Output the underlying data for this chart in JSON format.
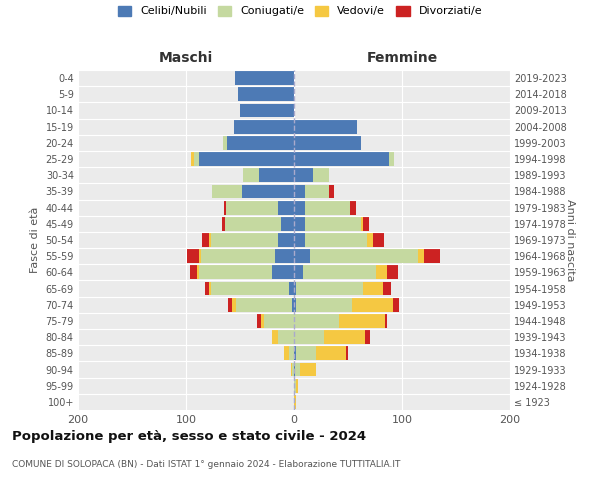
{
  "age_groups": [
    "100+",
    "95-99",
    "90-94",
    "85-89",
    "80-84",
    "75-79",
    "70-74",
    "65-69",
    "60-64",
    "55-59",
    "50-54",
    "45-49",
    "40-44",
    "35-39",
    "30-34",
    "25-29",
    "20-24",
    "15-19",
    "10-14",
    "5-9",
    "0-4"
  ],
  "birth_years": [
    "≤ 1923",
    "1924-1928",
    "1929-1933",
    "1934-1938",
    "1939-1943",
    "1944-1948",
    "1949-1953",
    "1954-1958",
    "1959-1963",
    "1964-1968",
    "1969-1973",
    "1974-1978",
    "1979-1983",
    "1984-1988",
    "1989-1993",
    "1994-1998",
    "1999-2003",
    "2004-2008",
    "2009-2013",
    "2014-2018",
    "2019-2023"
  ],
  "colors": {
    "celibi": "#4d7ab5",
    "coniugati": "#c5d9a0",
    "vedovi": "#f5c842",
    "divorziati": "#cc2222"
  },
  "maschi": {
    "celibi": [
      0,
      0,
      0,
      0,
      0,
      0,
      2,
      5,
      20,
      18,
      15,
      12,
      15,
      48,
      32,
      88,
      62,
      56,
      50,
      52,
      55
    ],
    "coniugati": [
      0,
      0,
      2,
      5,
      15,
      28,
      52,
      72,
      68,
      68,
      62,
      52,
      48,
      28,
      15,
      5,
      4,
      0,
      0,
      0,
      0
    ],
    "vedovi": [
      0,
      0,
      1,
      4,
      5,
      3,
      3,
      2,
      2,
      2,
      2,
      0,
      0,
      0,
      0,
      2,
      0,
      0,
      0,
      0,
      0
    ],
    "divorziati": [
      0,
      0,
      0,
      0,
      0,
      3,
      4,
      3,
      6,
      11,
      6,
      3,
      2,
      0,
      0,
      0,
      0,
      0,
      0,
      0,
      0
    ]
  },
  "femmine": {
    "celibi": [
      0,
      0,
      1,
      2,
      0,
      0,
      2,
      2,
      8,
      15,
      10,
      10,
      10,
      10,
      18,
      88,
      62,
      58,
      0,
      0,
      0
    ],
    "coniugati": [
      0,
      2,
      5,
      18,
      28,
      42,
      52,
      62,
      68,
      100,
      58,
      52,
      42,
      22,
      14,
      5,
      0,
      0,
      0,
      0,
      0
    ],
    "vedovi": [
      2,
      2,
      14,
      28,
      38,
      42,
      38,
      18,
      10,
      5,
      5,
      2,
      0,
      0,
      0,
      0,
      0,
      0,
      0,
      0,
      0
    ],
    "divorziati": [
      0,
      0,
      0,
      2,
      4,
      2,
      5,
      8,
      10,
      15,
      10,
      5,
      5,
      5,
      0,
      0,
      0,
      0,
      0,
      0,
      0
    ]
  },
  "xlim": 200,
  "title": "Popolazione per età, sesso e stato civile - 2024",
  "subtitle": "COMUNE DI SOLOPACA (BN) - Dati ISTAT 1° gennaio 2024 - Elaborazione TUTTITALIA.IT",
  "ylabel_left": "Fasce di età",
  "ylabel_right": "Anni di nascita",
  "xlabel_maschi": "Maschi",
  "xlabel_femmine": "Femmine",
  "legend_labels": [
    "Celibi/Nubili",
    "Coniugati/e",
    "Vedovi/e",
    "Divorziati/e"
  ],
  "background_color": "#ffffff",
  "plot_bg_color": "#ebebeb",
  "grid_color": "#ffffff"
}
